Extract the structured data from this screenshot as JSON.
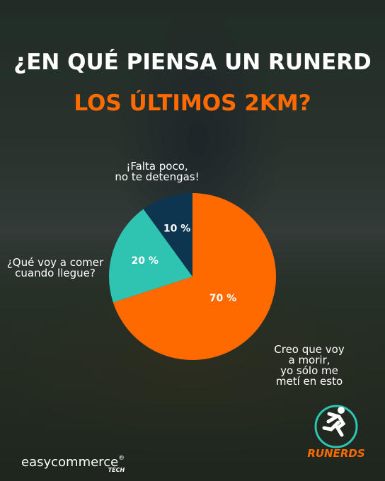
{
  "chart_data": {
    "type": "pie",
    "title": "¿EN QUÉ PIENSA UN RUNERD",
    "subtitle": "LOS ÚLTIMOS 2KM?",
    "categories": [
      "Creo que voy a morir,\nyo sólo me metí en esto",
      "¿Qué voy a comer\ncuando llegue?",
      "¡Falta poco,\nno te detengas!"
    ],
    "values": [
      70,
      20,
      10
    ],
    "value_labels": [
      "70 %",
      "20 %",
      "10 %"
    ],
    "colors": [
      "#ff6a00",
      "#2fc4b2",
      "#0e3550"
    ]
  },
  "brand": {
    "name": "easycommerce",
    "mark": "®",
    "tag": "TECH"
  },
  "logo": {
    "name": "RUNERDS"
  }
}
